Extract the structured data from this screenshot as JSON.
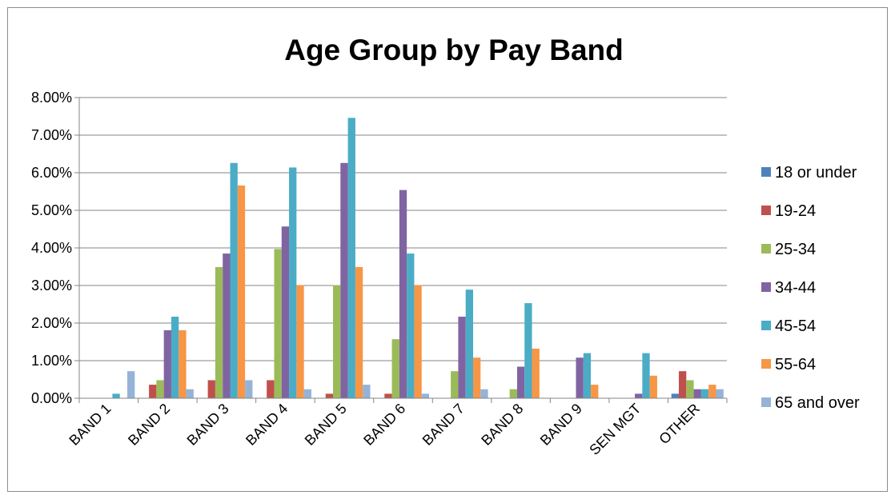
{
  "chart_data": {
    "type": "bar",
    "title": "Age Group by Pay Band",
    "xlabel": "",
    "ylabel": "",
    "ylim": [
      0,
      8
    ],
    "y_ticks": [
      "0.00%",
      "1.00%",
      "2.00%",
      "3.00%",
      "4.00%",
      "5.00%",
      "6.00%",
      "7.00%",
      "8.00%"
    ],
    "grid": true,
    "legend_position": "right",
    "categories": [
      "BAND 1",
      "BAND 2",
      "BAND 3",
      "BAND 4",
      "BAND 5",
      "BAND 6",
      "BAND 7",
      "BAND 8",
      "BAND 9",
      "SEN MGT",
      "OTHER"
    ],
    "series": [
      {
        "name": "18 or under",
        "color": "#4f81bd",
        "values": [
          0,
          0,
          0,
          0,
          0,
          0,
          0,
          0,
          0,
          0,
          0.12
        ]
      },
      {
        "name": "19-24",
        "color": "#c0504d",
        "values": [
          0,
          0.36,
          0.48,
          0.48,
          0.12,
          0.12,
          0,
          0,
          0,
          0,
          0.72
        ]
      },
      {
        "name": "25-34",
        "color": "#9bbb59",
        "values": [
          0,
          0.48,
          3.49,
          3.97,
          3.01,
          1.57,
          0.72,
          0.24,
          0,
          0,
          0.48
        ]
      },
      {
        "name": "34-44",
        "color": "#8064a2",
        "values": [
          0,
          1.81,
          3.85,
          4.57,
          6.26,
          5.54,
          2.17,
          0.84,
          1.08,
          0.12,
          0.24
        ]
      },
      {
        "name": "45-54",
        "color": "#4bacc6",
        "values": [
          0.12,
          2.17,
          6.26,
          6.14,
          7.46,
          3.85,
          2.89,
          2.53,
          1.2,
          1.2,
          0.24
        ]
      },
      {
        "name": "55-64",
        "color": "#f79646",
        "values": [
          0,
          1.81,
          5.66,
          3.01,
          3.49,
          3.01,
          1.08,
          1.32,
          0.36,
          0.6,
          0.36
        ]
      },
      {
        "name": "65 and over",
        "color": "#95b3d7",
        "values": [
          0.72,
          0.24,
          0.48,
          0.24,
          0.36,
          0.12,
          0.24,
          0,
          0,
          0,
          0.24
        ]
      }
    ]
  }
}
